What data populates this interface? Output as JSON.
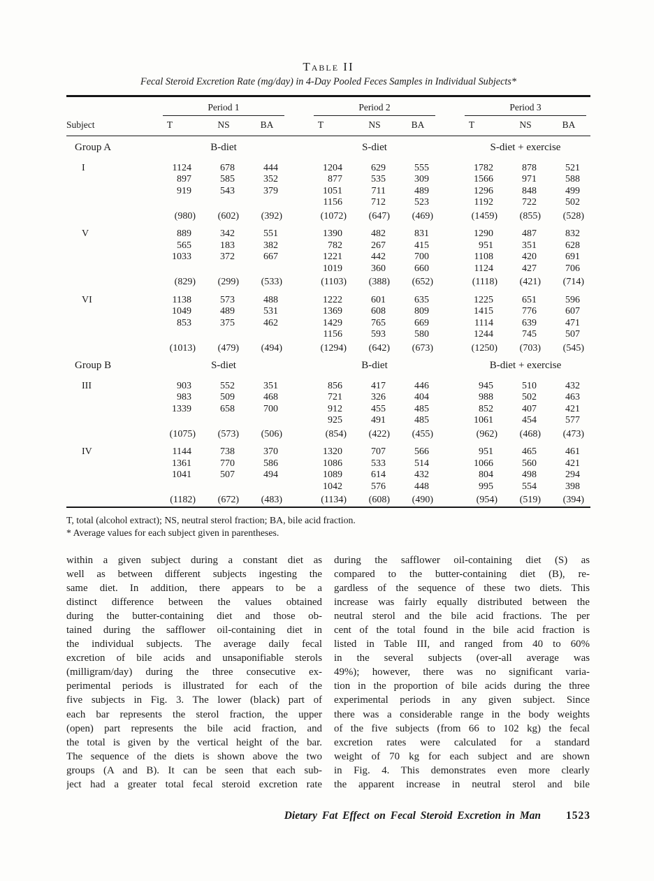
{
  "table": {
    "label": "Table II",
    "caption": "Fecal Steroid Excretion Rate (mg/day) in 4-Day Pooled Feces Samples in Individual Subjects*",
    "subject_header": "Subject",
    "periods": [
      "Period 1",
      "Period 2",
      "Period 3"
    ],
    "sub_columns": [
      "T",
      "NS",
      "BA"
    ],
    "groups": [
      {
        "name": "Group A",
        "diets": [
          "B-diet",
          "S-diet",
          "S-diet + exercise"
        ],
        "subjects": [
          {
            "id": "I",
            "rows": [
              [
                "1124",
                "678",
                "444",
                "1204",
                "629",
                "555",
                "1782",
                "878",
                "521"
              ],
              [
                "897",
                "585",
                "352",
                "877",
                "535",
                "309",
                "1566",
                "971",
                "588"
              ],
              [
                "919",
                "543",
                "379",
                "1051",
                "711",
                "489",
                "1296",
                "848",
                "499"
              ],
              [
                "",
                "",
                "",
                "1156",
                "712",
                "523",
                "1192",
                "722",
                "502"
              ]
            ],
            "avg": [
              "(980)",
              "(602)",
              "(392)",
              "(1072)",
              "(647)",
              "(469)",
              "(1459)",
              "(855)",
              "(528)"
            ]
          },
          {
            "id": "V",
            "rows": [
              [
                "889",
                "342",
                "551",
                "1390",
                "482",
                "831",
                "1290",
                "487",
                "832"
              ],
              [
                "565",
                "183",
                "382",
                "782",
                "267",
                "415",
                "951",
                "351",
                "628"
              ],
              [
                "1033",
                "372",
                "667",
                "1221",
                "442",
                "700",
                "1108",
                "420",
                "691"
              ],
              [
                "",
                "",
                "",
                "1019",
                "360",
                "660",
                "1124",
                "427",
                "706"
              ]
            ],
            "avg": [
              "(829)",
              "(299)",
              "(533)",
              "(1103)",
              "(388)",
              "(652)",
              "(1118)",
              "(421)",
              "(714)"
            ]
          },
          {
            "id": "VI",
            "rows": [
              [
                "1138",
                "573",
                "488",
                "1222",
                "601",
                "635",
                "1225",
                "651",
                "596"
              ],
              [
                "1049",
                "489",
                "531",
                "1369",
                "608",
                "809",
                "1415",
                "776",
                "607"
              ],
              [
                "853",
                "375",
                "462",
                "1429",
                "765",
                "669",
                "1114",
                "639",
                "471"
              ],
              [
                "",
                "",
                "",
                "1156",
                "593",
                "580",
                "1244",
                "745",
                "507"
              ]
            ],
            "avg": [
              "(1013)",
              "(479)",
              "(494)",
              "(1294)",
              "(642)",
              "(673)",
              "(1250)",
              "(703)",
              "(545)"
            ]
          }
        ]
      },
      {
        "name": "Group B",
        "diets": [
          "S-diet",
          "B-diet",
          "B-diet + exercise"
        ],
        "subjects": [
          {
            "id": "III",
            "rows": [
              [
                "903",
                "552",
                "351",
                "856",
                "417",
                "446",
                "945",
                "510",
                "432"
              ],
              [
                "983",
                "509",
                "468",
                "721",
                "326",
                "404",
                "988",
                "502",
                "463"
              ],
              [
                "1339",
                "658",
                "700",
                "912",
                "455",
                "485",
                "852",
                "407",
                "421"
              ],
              [
                "",
                "",
                "",
                "925",
                "491",
                "485",
                "1061",
                "454",
                "577"
              ]
            ],
            "avg": [
              "(1075)",
              "(573)",
              "(506)",
              "(854)",
              "(422)",
              "(455)",
              "(962)",
              "(468)",
              "(473)"
            ]
          },
          {
            "id": "IV",
            "rows": [
              [
                "1144",
                "738",
                "370",
                "1320",
                "707",
                "566",
                "951",
                "465",
                "461"
              ],
              [
                "1361",
                "770",
                "586",
                "1086",
                "533",
                "514",
                "1066",
                "560",
                "421"
              ],
              [
                "1041",
                "507",
                "494",
                "1089",
                "614",
                "432",
                "804",
                "498",
                "294"
              ],
              [
                "",
                "",
                "",
                "1042",
                "576",
                "448",
                "995",
                "554",
                "398"
              ]
            ],
            "avg": [
              "(1182)",
              "(672)",
              "(483)",
              "(1134)",
              "(608)",
              "(490)",
              "(954)",
              "(519)",
              "(394)"
            ]
          }
        ]
      }
    ],
    "footnotes": [
      "T, total (alcohol extract); NS, neutral sterol fraction; BA, bile acid fraction.",
      "* Average values for each subject given in parentheses."
    ]
  },
  "body": {
    "left_column_lines": [
      "within a given subject during a constant diet as",
      "well as between different subjects ingesting the",
      "same diet. In addition, there appears to be a",
      "distinct difference between the values obtained",
      "during the butter-containing diet and those ob-",
      "tained during the safflower oil-containing diet in",
      "the individual subjects. The average daily fecal",
      "excretion of bile acids and unsaponifiable sterols",
      "(milligram/day) during the three consecutive ex-",
      "perimental periods is illustrated for each of the",
      "five subjects in Fig. 3. The lower (black) part of",
      "each bar represents the sterol fraction, the upper",
      "(open) part represents the bile acid fraction, and",
      "the total is given by the vertical height of the bar.",
      "The sequence of the diets is shown above the two",
      "groups (A and B). It can be seen that each sub-",
      "ject had a greater total fecal steroid excretion rate"
    ],
    "right_column_lines": [
      "during the safflower oil-containing diet (S) as",
      "compared to the butter-containing diet (B), re-",
      "gardless of the sequence of these two diets. This",
      "increase was fairly equally distributed between the",
      "neutral sterol and the bile acid fractions. The per",
      "cent of the total found in the bile acid fraction is",
      "listed in Table III, and ranged from 40 to 60%",
      "in the several subjects (over-all average was",
      "49%); however, there was no significant varia-",
      "tion in the proportion of bile acids during the three",
      "experimental periods in any given subject. Since",
      "there was a considerable range in the body weights",
      "of the five subjects (from 66 to 102 kg) the fecal",
      "excretion rates were calculated for a standard",
      "weight of 70 kg for each subject and are shown",
      "in Fig. 4. This demonstrates even more clearly",
      "the apparent increase in neutral sterol and bile"
    ]
  },
  "footer": {
    "running_title": "Dietary Fat Effect on Fecal Steroid Excretion in Man",
    "page_number": "1523"
  },
  "colors": {
    "ink": "#1b1b1b",
    "paper": "#fdfdfb"
  }
}
